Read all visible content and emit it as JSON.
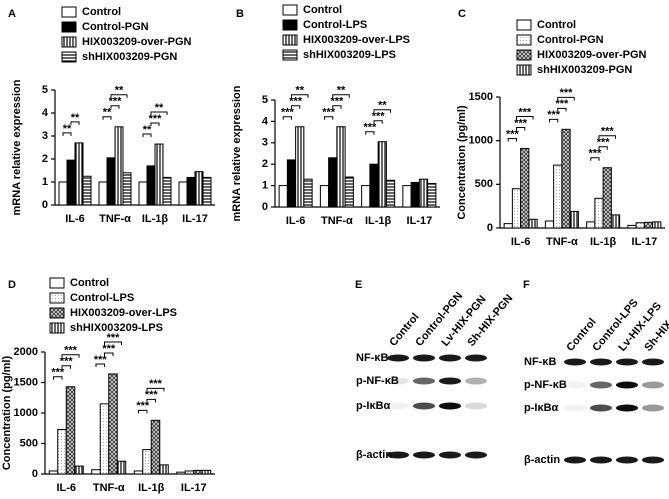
{
  "chart_data": [
    {
      "type": "bar",
      "panel": "A",
      "y_label": "mRNA relative expression",
      "categories": [
        "IL-6",
        "TNF-α",
        "IL-1β",
        "IL-17"
      ],
      "series": [
        {
          "name": "Control",
          "color": "#ffffff",
          "pattern": "solid",
          "values": [
            1,
            1,
            1,
            1
          ]
        },
        {
          "name": "Control-PGN",
          "color": "#000000",
          "pattern": "solid",
          "values": [
            1.95,
            2.05,
            1.7,
            1.2
          ]
        },
        {
          "name": "HIX003209-over-PGN",
          "color": "#ffffff",
          "pattern": "vlines",
          "values": [
            2.7,
            3.4,
            2.65,
            1.45
          ]
        },
        {
          "name": "shHIX003209-PGN",
          "color": "#ffffff",
          "pattern": "hlines",
          "values": [
            1.25,
            1.4,
            1.2,
            1.2
          ]
        }
      ],
      "ylim": [
        0,
        5
      ],
      "yticks": [
        0,
        1,
        2,
        3,
        4,
        5
      ],
      "annotations": [
        {
          "text": "**",
          "category": "IL-6",
          "from": "Control",
          "to": "Control-PGN"
        },
        {
          "text": "**",
          "category": "IL-6",
          "from": "Control-PGN",
          "to": "HIX003209-over-PGN"
        },
        {
          "text": "**",
          "category": "TNF-α",
          "from": "Control",
          "to": "Control-PGN"
        },
        {
          "text": "***",
          "category": "TNF-α",
          "from": "Control-PGN",
          "to": "HIX003209-over-PGN"
        },
        {
          "text": "**",
          "category": "TNF-α",
          "from": "Control-PGN",
          "to": "shHIX003209-PGN"
        },
        {
          "text": "**",
          "category": "IL-1β",
          "from": "Control",
          "to": "Control-PGN"
        },
        {
          "text": "***",
          "category": "IL-1β",
          "from": "Control-PGN",
          "to": "HIX003209-over-PGN"
        },
        {
          "text": "**",
          "category": "IL-1β",
          "from": "Control-PGN",
          "to": "shHIX003209-PGN"
        }
      ]
    },
    {
      "type": "bar",
      "panel": "B",
      "y_label": "mRNA relative expression",
      "categories": [
        "IL-6",
        "TNF-α",
        "IL-1β",
        "IL-17"
      ],
      "series": [
        {
          "name": "Control",
          "color": "#ffffff",
          "pattern": "solid",
          "values": [
            1,
            1,
            1,
            1
          ]
        },
        {
          "name": "Control-LPS",
          "color": "#000000",
          "pattern": "solid",
          "values": [
            2.2,
            2.3,
            2.0,
            1.15
          ]
        },
        {
          "name": "HIX003209-over-LPS",
          "color": "#ffffff",
          "pattern": "vlines",
          "values": [
            3.75,
            3.75,
            3.05,
            1.3
          ]
        },
        {
          "name": "shHIX003209-LPS",
          "color": "#ffffff",
          "pattern": "hlines",
          "values": [
            1.3,
            1.4,
            1.25,
            1.1
          ]
        }
      ],
      "ylim": [
        0,
        5
      ],
      "yticks": [
        0,
        1,
        2,
        3,
        4,
        5
      ],
      "annotations": [
        {
          "text": "***",
          "category": "IL-6",
          "from": "Control",
          "to": "Control-LPS"
        },
        {
          "text": "***",
          "category": "IL-6",
          "from": "Control-LPS",
          "to": "HIX003209-over-LPS"
        },
        {
          "text": "**",
          "category": "IL-6",
          "from": "Control-LPS",
          "to": "shHIX003209-LPS"
        },
        {
          "text": "***",
          "category": "TNF-α",
          "from": "Control",
          "to": "Control-LPS"
        },
        {
          "text": "***",
          "category": "TNF-α",
          "from": "Control-LPS",
          "to": "HIX003209-over-LPS"
        },
        {
          "text": "**",
          "category": "TNF-α",
          "from": "Control-LPS",
          "to": "shHIX003209-LPS"
        },
        {
          "text": "***",
          "category": "IL-1β",
          "from": "Control",
          "to": "Control-LPS"
        },
        {
          "text": "***",
          "category": "IL-1β",
          "from": "Control-LPS",
          "to": "HIX003209-over-LPS"
        },
        {
          "text": "**",
          "category": "IL-1β",
          "from": "Control-LPS",
          "to": "shHIX003209-LPS"
        }
      ]
    },
    {
      "type": "bar",
      "panel": "C",
      "y_label": "Concentration (pg/ml)",
      "categories": [
        "IL-6",
        "TNF-α",
        "IL-1β",
        "IL-17"
      ],
      "series": [
        {
          "name": "Control",
          "color": "#ffffff",
          "pattern": "solid",
          "values": [
            50,
            80,
            70,
            30
          ]
        },
        {
          "name": "Control-PGN",
          "color": "#ffffff",
          "pattern": "dots",
          "values": [
            450,
            720,
            340,
            60
          ]
        },
        {
          "name": "HIX003209-over-PGN",
          "color": "#ffffff",
          "pattern": "cross",
          "values": [
            910,
            1130,
            690,
            65
          ]
        },
        {
          "name": "shHIX003209-PGN",
          "color": "#ffffff",
          "pattern": "vlines",
          "values": [
            100,
            190,
            150,
            70
          ]
        }
      ],
      "ylim": [
        0,
        1500
      ],
      "yticks": [
        0,
        500,
        1000,
        1500
      ],
      "annotations": [
        {
          "text": "***",
          "category": "IL-6",
          "from": "Control",
          "to": "Control-PGN"
        },
        {
          "text": "***",
          "category": "IL-6",
          "from": "Control-PGN",
          "to": "HIX003209-over-PGN"
        },
        {
          "text": "***",
          "category": "IL-6",
          "from": "Control-PGN",
          "to": "shHIX003209-PGN"
        },
        {
          "text": "***",
          "category": "TNF-α",
          "from": "Control",
          "to": "Control-PGN"
        },
        {
          "text": "***",
          "category": "TNF-α",
          "from": "Control-PGN",
          "to": "HIX003209-over-PGN"
        },
        {
          "text": "***",
          "category": "TNF-α",
          "from": "Control-PGN",
          "to": "shHIX003209-PGN"
        },
        {
          "text": "***",
          "category": "IL-1β",
          "from": "Control",
          "to": "Control-PGN"
        },
        {
          "text": "***",
          "category": "IL-1β",
          "from": "Control-PGN",
          "to": "HIX003209-over-PGN"
        },
        {
          "text": "***",
          "category": "IL-1β",
          "from": "Control-PGN",
          "to": "shHIX003209-PGN"
        }
      ]
    },
    {
      "type": "bar",
      "panel": "D",
      "y_label": "Concentration (pg/ml)",
      "categories": [
        "IL-6",
        "TNF-α",
        "IL-1β",
        "IL-17"
      ],
      "series": [
        {
          "name": "Control",
          "color": "#ffffff",
          "pattern": "solid",
          "values": [
            50,
            70,
            50,
            30
          ]
        },
        {
          "name": "Control-LPS",
          "color": "#ffffff",
          "pattern": "dots",
          "values": [
            730,
            1150,
            400,
            50
          ]
        },
        {
          "name": "HIX003209-over-LPS",
          "color": "#ffffff",
          "pattern": "cross",
          "values": [
            1430,
            1640,
            880,
            60
          ]
        },
        {
          "name": "shHIX003209-LPS",
          "color": "#ffffff",
          "pattern": "vlines",
          "values": [
            130,
            210,
            150,
            60
          ]
        }
      ],
      "ylim": [
        0,
        2000
      ],
      "yticks": [
        0,
        500,
        1000,
        1500,
        2000
      ],
      "annotations": [
        {
          "text": "***",
          "category": "IL-6",
          "from": "Control",
          "to": "Control-LPS"
        },
        {
          "text": "***",
          "category": "IL-6",
          "from": "Control-LPS",
          "to": "HIX003209-over-LPS"
        },
        {
          "text": "***",
          "category": "IL-6",
          "from": "Control-LPS",
          "to": "shHIX003209-LPS"
        },
        {
          "text": "***",
          "category": "TNF-α",
          "from": "Control",
          "to": "Control-LPS"
        },
        {
          "text": "***",
          "category": "TNF-α",
          "from": "Control-LPS",
          "to": "HIX003209-over-LPS"
        },
        {
          "text": "***",
          "category": "TNF-α",
          "from": "Control-LPS",
          "to": "shHIX003209-LPS"
        },
        {
          "text": "***",
          "category": "IL-1β",
          "from": "Control",
          "to": "Control-LPS"
        },
        {
          "text": "***",
          "category": "IL-1β",
          "from": "Control-LPS",
          "to": "HIX003209-over-LPS"
        },
        {
          "text": "***",
          "category": "IL-1β",
          "from": "Control-LPS",
          "to": "shHIX003209-LPS"
        }
      ]
    }
  ],
  "blots": [
    {
      "panel": "E",
      "columns": [
        "Control",
        "Control-PGN",
        "Lv-HIX-PGN",
        "Sh-HIX-PGN"
      ],
      "rows": [
        "NF-κB",
        "p-NF-κB",
        "p-IκBα",
        "β-actin"
      ]
    },
    {
      "panel": "F",
      "columns": [
        "Control",
        "Control-LPS",
        "Lv-HIX-LPS",
        "Sh-HIX-LPS"
      ],
      "rows": [
        "NF-κB",
        "p-NF-κB",
        "p-IκBα",
        "β-actin"
      ]
    }
  ]
}
